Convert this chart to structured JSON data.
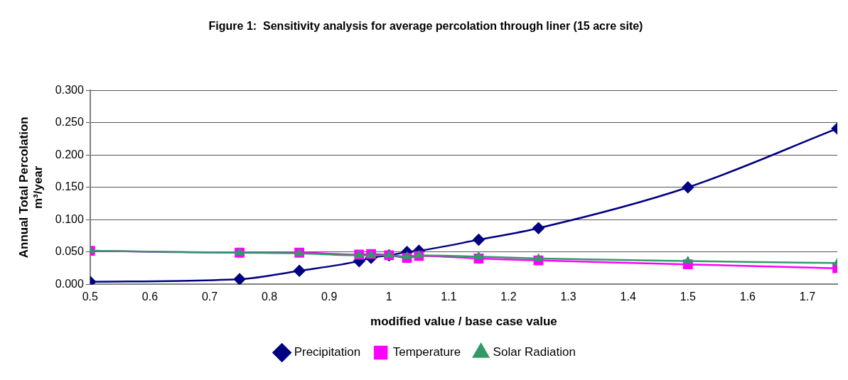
{
  "chart_data": {
    "type": "line",
    "title": "Figure 1:  Sensitivity analysis for average percolation through liner (15 acre site)",
    "xlabel": "modified value / base case value",
    "ylabel": "Annual Total Percolation\nm³/year",
    "x": [
      0.5,
      0.75,
      0.85,
      0.95,
      0.97,
      1.0,
      1.03,
      1.05,
      1.15,
      1.25,
      1.5,
      1.75
    ],
    "series": [
      {
        "name": "Precipitation",
        "color": "#000080",
        "marker": "diamond",
        "values": [
          0.004,
          0.008,
          0.021,
          0.036,
          0.041,
          0.045,
          0.05,
          0.052,
          0.069,
          0.087,
          0.15,
          0.241
        ]
      },
      {
        "name": "Temperature",
        "color": "#ff00ff",
        "marker": "square",
        "values": [
          0.052,
          0.049,
          0.049,
          0.046,
          0.047,
          0.045,
          0.041,
          0.044,
          0.04,
          0.037,
          0.031,
          0.025
        ]
      },
      {
        "name": "Solar Radiation",
        "color": "#339966",
        "marker": "triangle",
        "values": [
          0.052,
          0.049,
          0.048,
          0.045,
          0.045,
          0.045,
          0.043,
          0.045,
          0.043,
          0.04,
          0.036,
          0.033
        ]
      }
    ],
    "xlim": [
      0.5,
      1.75
    ],
    "xticks": [
      0.5,
      0.6,
      0.7,
      0.8,
      0.9,
      1,
      1.1,
      1.2,
      1.3,
      1.4,
      1.5,
      1.6,
      1.7
    ],
    "ylim": [
      0,
      0.3
    ],
    "yticks": [
      {
        "value": 0,
        "label": "0.000"
      },
      {
        "value": 0.05,
        "label": "0.050"
      },
      {
        "value": 0.1,
        "label": "0.100"
      },
      {
        "value": 0.15,
        "label": "0.150"
      },
      {
        "value": 0.2,
        "label": "0.200"
      },
      {
        "value": 0.25,
        "label": "0.250"
      },
      {
        "value": 0.3,
        "label": "0.300"
      }
    ],
    "grid": "y",
    "legend": "bottom"
  }
}
